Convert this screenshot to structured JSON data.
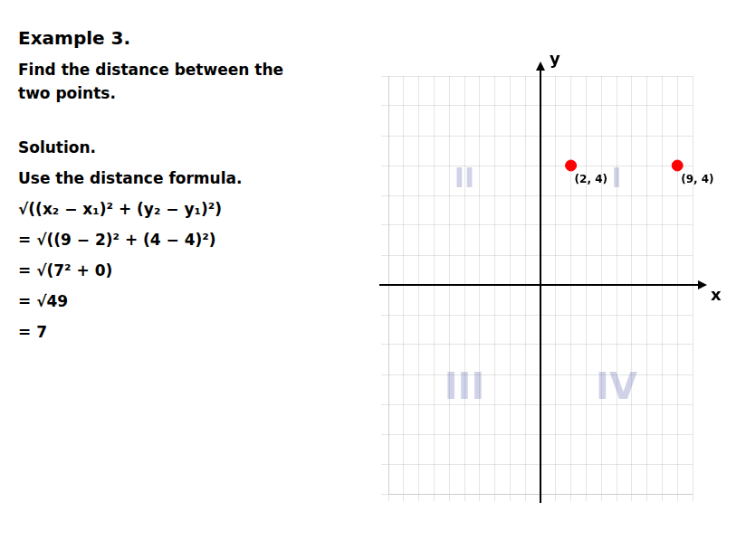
{
  "chart_data": {
    "type": "scatter",
    "title": "Example 3.",
    "subtitle": [
      "Find the distance between the",
      "two points."
    ],
    "annotations": [
      "Solution.",
      "Use the distance formula.",
      "√((x₂ − x₁)² + (y₂ − y₁)²)",
      "= √((9 − 2)² + (4 − 4)²)",
      "= √(7² + 0)",
      "= √49",
      "= 7"
    ],
    "quadrant_labels": [
      "I",
      "II",
      "III",
      "IV"
    ],
    "x_label": "x",
    "y_label": "y",
    "x": [
      2,
      9
    ],
    "values": [
      4,
      4
    ],
    "value_labels": [
      "(2, 4)",
      "(9, 4)"
    ],
    "data_labels": true,
    "color": "#ff0000",
    "xlim": [
      -10,
      10
    ],
    "ylim": [
      -7,
      7
    ],
    "xticks": [
      -10,
      -9,
      -8,
      -7,
      -6,
      -5,
      -4,
      -3,
      -2,
      -1,
      0,
      1,
      2,
      3,
      4,
      5,
      6,
      7,
      8,
      9,
      10
    ],
    "yticks": [
      -7,
      -6,
      -5,
      -4,
      -3,
      -2,
      -1,
      0,
      1,
      2,
      3,
      4,
      5,
      6,
      7
    ],
    "grid": true,
    "tick_labels": false
  }
}
